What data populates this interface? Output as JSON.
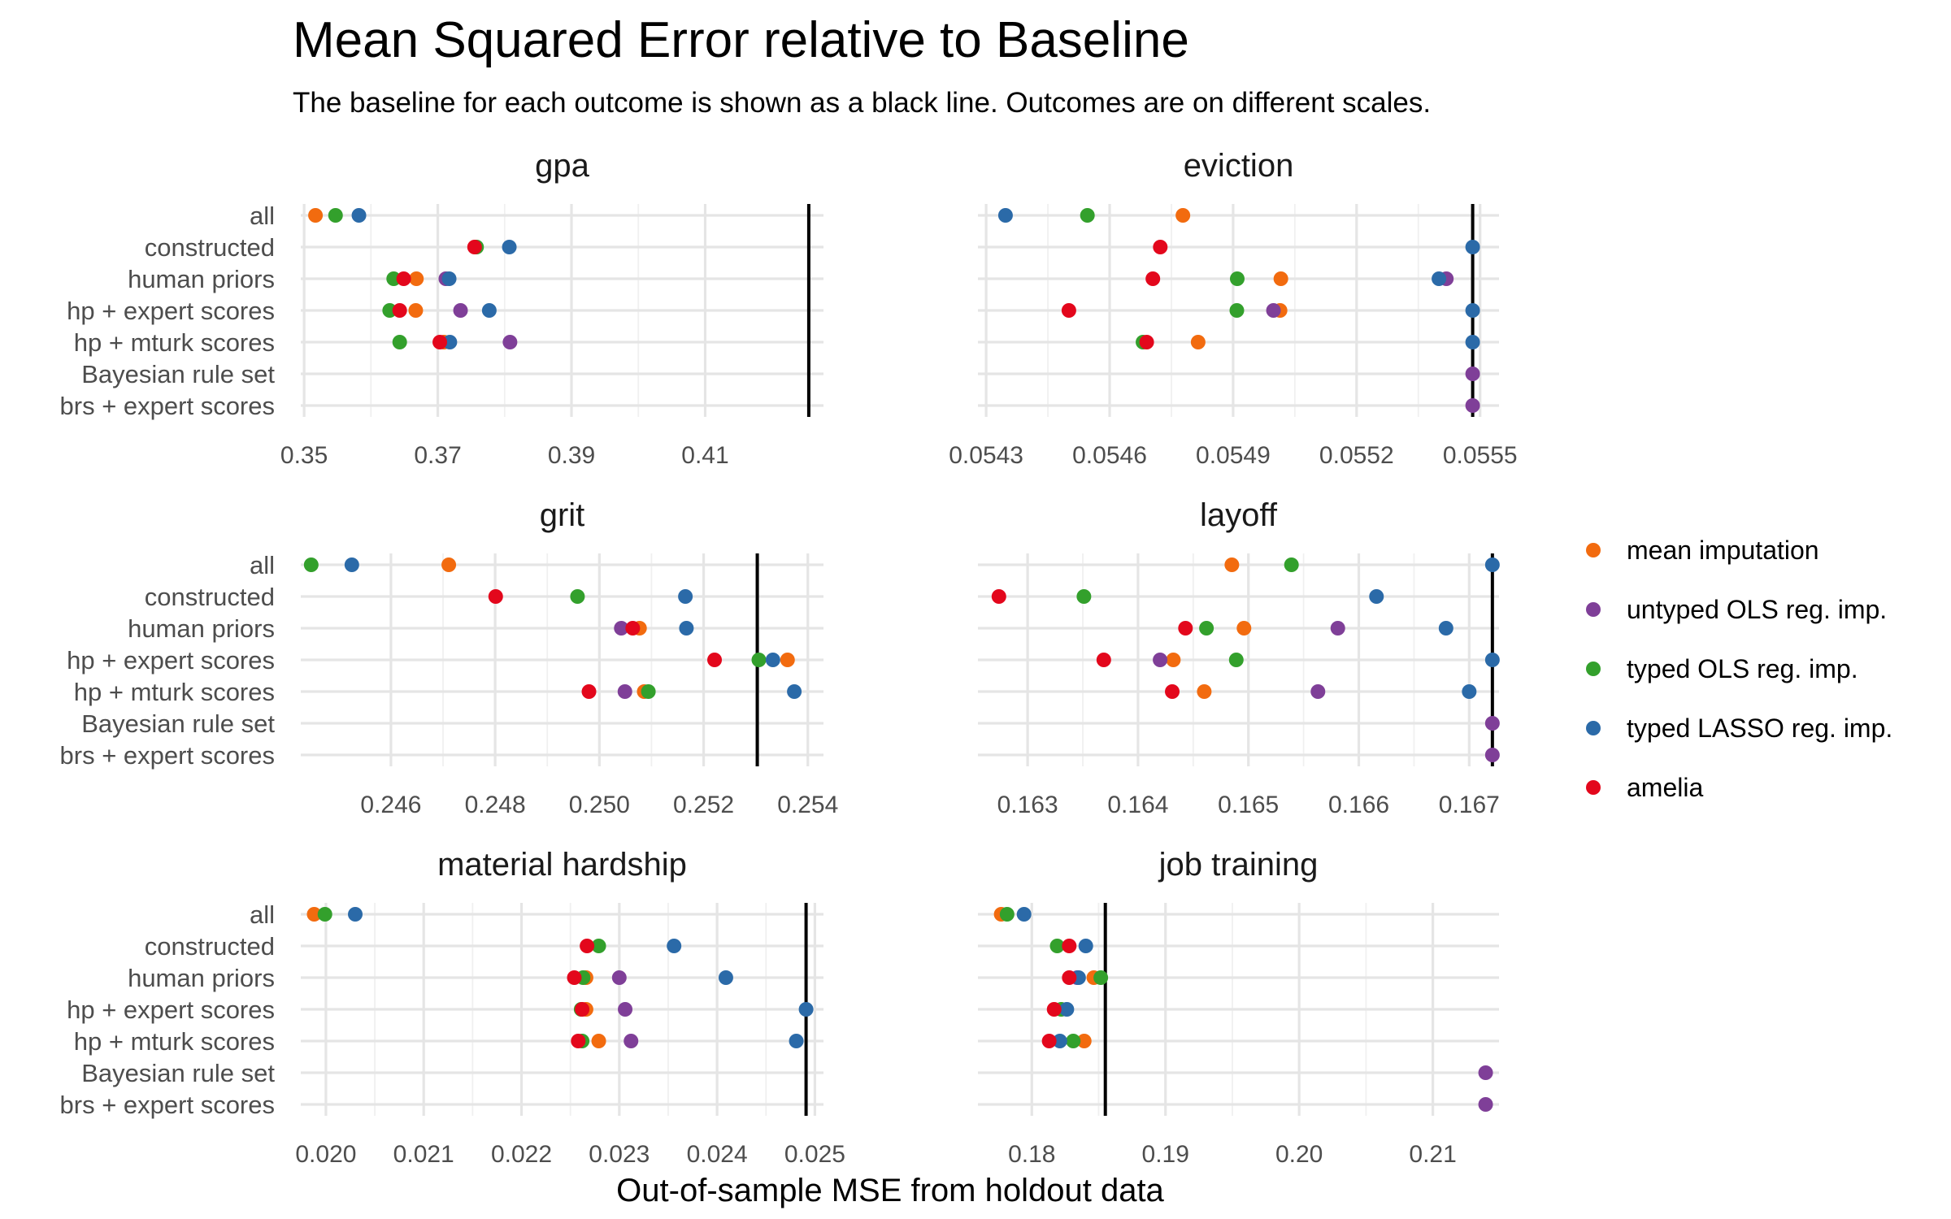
{
  "figure": {
    "title": "Mean Squared Error relative to Baseline",
    "subtitle": "The baseline for each outcome is shown as a black line. Outcomes are on different scales.",
    "xlabel": "Out-of-sample MSE from holdout data"
  },
  "colors": {
    "mean imputation": "#f26b0f",
    "untyped OLS reg. imp.": "#7f3f98",
    "typed OLS reg. imp.": "#33a02c",
    "typed LASSO reg. imp.": "#2b6aa8",
    "amelia": "#e3071c"
  },
  "legend": {
    "items": [
      "mean imputation",
      "untyped OLS reg. imp.",
      "typed OLS reg. imp.",
      "typed LASSO reg. imp.",
      "amelia"
    ]
  },
  "chart_data": [
    {
      "type": "scatter",
      "title": "gpa",
      "categories": [
        "all",
        "constructed",
        "human priors",
        "hp + expert scores",
        "hp + mturk scores",
        "Bayesian rule set",
        "brs + expert scores"
      ],
      "xlim": [
        0.3495,
        0.4277
      ],
      "ticks": [
        0.35,
        0.37,
        0.39,
        0.41
      ],
      "tick_labels": [
        "0.35",
        "0.37",
        "0.39",
        "0.41"
      ],
      "baseline": 0.4255,
      "series": [
        {
          "name": "mean imputation",
          "values": [
            0.3517,
            null,
            0.3668,
            0.3667,
            0.3709,
            null,
            null
          ]
        },
        {
          "name": "untyped OLS reg. imp.",
          "values": [
            null,
            null,
            0.3712,
            0.3734,
            0.3808,
            null,
            null
          ]
        },
        {
          "name": "typed OLS reg. imp.",
          "values": [
            0.3547,
            0.3758,
            0.3634,
            0.3628,
            0.3643,
            null,
            null
          ]
        },
        {
          "name": "typed LASSO reg. imp.",
          "values": [
            0.3582,
            0.3807,
            0.3717,
            0.3777,
            0.3718,
            null,
            null
          ]
        },
        {
          "name": "amelia",
          "values": [
            null,
            0.3755,
            0.3649,
            0.3643,
            0.3703,
            null,
            null
          ]
        }
      ]
    },
    {
      "type": "scatter",
      "title": "eviction",
      "categories": [
        "all",
        "constructed",
        "human priors",
        "hp + expert scores",
        "hp + mturk scores",
        "Bayesian rule set",
        "brs + expert scores"
      ],
      "xlim": [
        0.05428,
        0.055546
      ],
      "ticks": [
        0.0543,
        0.0546,
        0.0549,
        0.0552,
        0.0555
      ],
      "tick_labels": [
        "0.0543",
        "0.0546",
        "0.0549",
        "0.0552",
        "0.0555"
      ],
      "baseline": 0.055482,
      "series": [
        {
          "name": "mean imputation",
          "values": [
            0.054778,
            null,
            0.055016,
            0.055014,
            0.054815,
            null,
            null
          ]
        },
        {
          "name": "untyped OLS reg. imp.",
          "values": [
            null,
            null,
            0.055418,
            0.054998,
            null,
            0.055482,
            0.055482
          ]
        },
        {
          "name": "typed OLS reg. imp.",
          "values": [
            0.054546,
            null,
            0.05491,
            0.054909,
            0.054681,
            null,
            null
          ]
        },
        {
          "name": "typed LASSO reg. imp.",
          "values": [
            0.054347,
            0.055482,
            0.0554,
            0.055482,
            0.055482,
            null,
            null
          ]
        },
        {
          "name": "amelia",
          "values": [
            null,
            0.054723,
            0.054705,
            0.054501,
            0.05469,
            null,
            null
          ]
        }
      ]
    },
    {
      "type": "scatter",
      "title": "grit",
      "categories": [
        "all",
        "constructed",
        "human priors",
        "hp + expert scores",
        "hp + mturk scores",
        "Bayesian rule set",
        "brs + expert scores"
      ],
      "xlim": [
        0.24427,
        0.2543
      ],
      "ticks": [
        0.246,
        0.248,
        0.25,
        0.252,
        0.254
      ],
      "tick_labels": [
        "0.246",
        "0.248",
        "0.250",
        "0.252",
        "0.254"
      ],
      "baseline": 0.25303,
      "series": [
        {
          "name": "mean imputation",
          "values": [
            0.24711,
            null,
            0.25077,
            0.25361,
            0.25086,
            null,
            null
          ]
        },
        {
          "name": "untyped OLS reg. imp.",
          "values": [
            null,
            null,
            0.25042,
            null,
            0.25049,
            null,
            null
          ]
        },
        {
          "name": "typed OLS reg. imp.",
          "values": [
            0.24447,
            0.24958,
            null,
            0.25306,
            0.25094,
            null,
            null
          ]
        },
        {
          "name": "typed LASSO reg. imp.",
          "values": [
            0.24525,
            0.25165,
            0.25167,
            0.25333,
            0.25374,
            null,
            null
          ]
        },
        {
          "name": "amelia",
          "values": [
            null,
            0.24801,
            0.25064,
            0.25221,
            0.2498,
            null,
            null
          ]
        }
      ]
    },
    {
      "type": "scatter",
      "title": "layoff",
      "categories": [
        "all",
        "constructed",
        "human priors",
        "hp + expert scores",
        "hp + mturk scores",
        "Bayesian rule set",
        "brs + expert scores"
      ],
      "xlim": [
        0.16255,
        0.16727
      ],
      "ticks": [
        0.163,
        0.164,
        0.165,
        0.166,
        0.167
      ],
      "tick_labels": [
        "0.163",
        "0.164",
        "0.165",
        "0.166",
        "0.167"
      ],
      "baseline": 0.16721,
      "series": [
        {
          "name": "mean imputation",
          "values": [
            0.16485,
            null,
            0.16496,
            0.16432,
            0.1646,
            null,
            null
          ]
        },
        {
          "name": "untyped OLS reg. imp.",
          "values": [
            null,
            null,
            0.16581,
            0.1642,
            0.16563,
            0.16721,
            0.16721
          ]
        },
        {
          "name": "typed OLS reg. imp.",
          "values": [
            0.16539,
            0.16351,
            0.16462,
            0.16489,
            null,
            null,
            null
          ]
        },
        {
          "name": "typed LASSO reg. imp.",
          "values": [
            0.16721,
            0.16616,
            0.16679,
            0.16721,
            0.167,
            null,
            null
          ]
        },
        {
          "name": "amelia",
          "values": [
            null,
            0.16274,
            0.16443,
            0.16369,
            0.16431,
            null,
            null
          ]
        }
      ]
    },
    {
      "type": "scatter",
      "title": "material hardship",
      "categories": [
        "all",
        "constructed",
        "human priors",
        "hp + expert scores",
        "hp + mturk scores",
        "Bayesian rule set",
        "brs + expert scores"
      ],
      "xlim": [
        0.019743,
        0.025088
      ],
      "ticks": [
        0.02,
        0.021,
        0.022,
        0.023,
        0.024,
        0.025
      ],
      "tick_labels": [
        "0.020",
        "0.021",
        "0.022",
        "0.023",
        "0.024",
        "0.025"
      ],
      "baseline": 0.02491,
      "series": [
        {
          "name": "mean imputation",
          "values": [
            0.01988,
            null,
            0.02266,
            0.02266,
            0.02279,
            null,
            null
          ]
        },
        {
          "name": "untyped OLS reg. imp.",
          "values": [
            null,
            null,
            0.023,
            0.02306,
            0.02312,
            null,
            null
          ]
        },
        {
          "name": "typed OLS reg. imp.",
          "values": [
            0.01999,
            0.02279,
            0.02263,
            0.02261,
            0.02262,
            null,
            null
          ]
        },
        {
          "name": "typed LASSO reg. imp.",
          "values": [
            0.0203,
            0.02356,
            0.02409,
            0.02491,
            0.02481,
            null,
            null
          ]
        },
        {
          "name": "amelia",
          "values": [
            null,
            0.02267,
            0.02254,
            0.02262,
            0.02258,
            null,
            null
          ]
        }
      ]
    },
    {
      "type": "scatter",
      "title": "job training",
      "categories": [
        "all",
        "constructed",
        "human priors",
        "hp + expert scores",
        "hp + mturk scores",
        "Bayesian rule set",
        "brs + expert scores"
      ],
      "xlim": [
        0.17597,
        0.21495
      ],
      "ticks": [
        0.18,
        0.19,
        0.2,
        0.21
      ],
      "tick_labels": [
        "0.18",
        "0.19",
        "0.20",
        "0.21"
      ],
      "baseline": 0.1855,
      "series": [
        {
          "name": "mean imputation",
          "values": [
            0.17771,
            null,
            0.18464,
            null,
            0.18392,
            null,
            null
          ]
        },
        {
          "name": "untyped OLS reg. imp.",
          "values": [
            null,
            null,
            0.1834,
            null,
            null,
            0.21395,
            0.21395
          ]
        },
        {
          "name": "typed OLS reg. imp.",
          "values": [
            0.17815,
            0.1819,
            0.18516,
            0.1822,
            0.1831,
            null,
            null
          ]
        },
        {
          "name": "typed LASSO reg. imp.",
          "values": [
            0.17942,
            0.18404,
            0.1835,
            0.18262,
            0.1821,
            null,
            null
          ]
        },
        {
          "name": "amelia",
          "values": [
            null,
            0.1828,
            0.1828,
            0.18167,
            0.1813,
            null,
            null
          ]
        }
      ]
    }
  ]
}
